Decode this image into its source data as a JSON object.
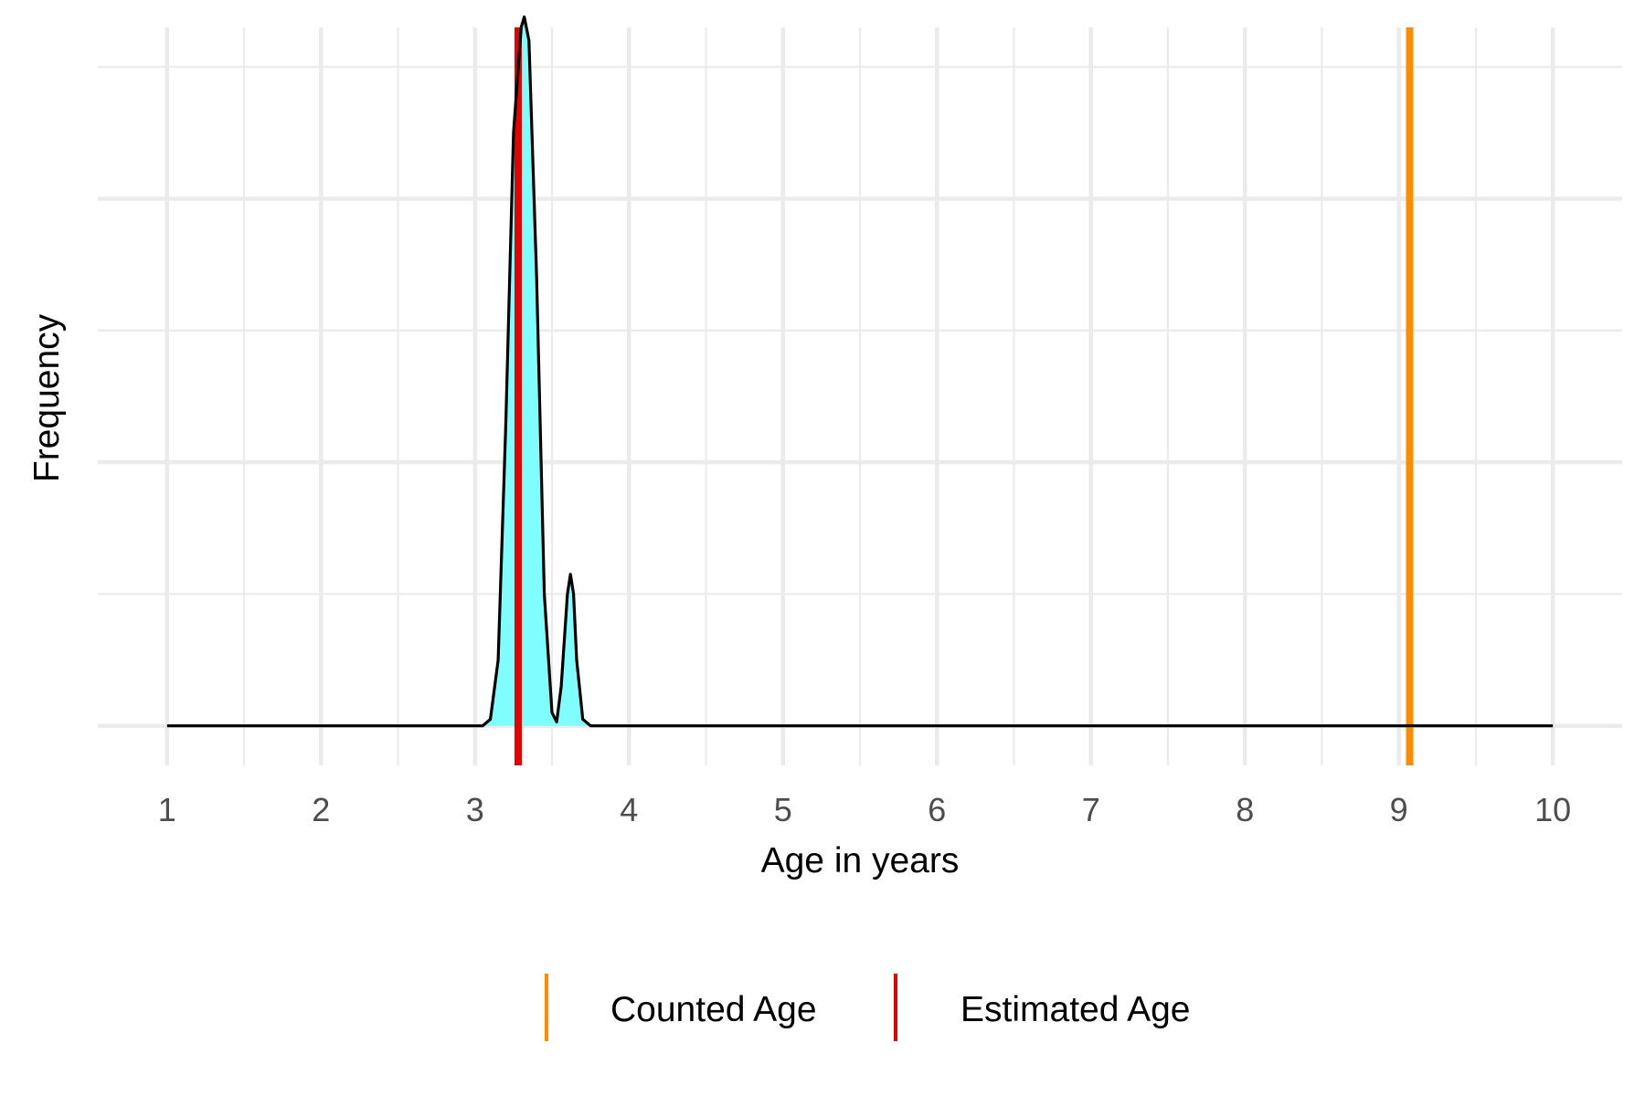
{
  "chart_data": {
    "type": "area",
    "xlabel": "Age in years",
    "ylabel": "Frequency",
    "xlim": [
      0.55,
      10.45
    ],
    "x_ticks": [
      1,
      2,
      3,
      4,
      5,
      6,
      7,
      8,
      9,
      10
    ],
    "x_tick_labels": [
      "1",
      "2",
      "3",
      "4",
      "5",
      "6",
      "7",
      "8",
      "9",
      "10"
    ],
    "ylim": [
      -0.3,
      5.3
    ],
    "y_major_gridlines": [
      0,
      2,
      4
    ],
    "y_minor_gridlines": [
      1,
      3,
      5
    ],
    "grid": true,
    "y_tick_labels_shown": false,
    "density": {
      "fill_color": "#7ffdff",
      "line_color": "#000000",
      "x": [
        1.0,
        3.05,
        3.1,
        3.15,
        3.2,
        3.25,
        3.3,
        3.32,
        3.35,
        3.4,
        3.45,
        3.5,
        3.53,
        3.56,
        3.6,
        3.62,
        3.64,
        3.66,
        3.7,
        3.75,
        3.8,
        10.0
      ],
      "y": [
        0,
        0,
        0.05,
        0.5,
        2.3,
        4.5,
        5.3,
        5.38,
        5.2,
        3.4,
        1.0,
        0.1,
        0.03,
        0.3,
        1.0,
        1.15,
        1.0,
        0.5,
        0.05,
        0,
        0,
        0
      ]
    },
    "vlines": [
      {
        "label": "Counted Age",
        "x": 9.07,
        "color": "#ff8c00"
      },
      {
        "label": "Estimated Age",
        "x": 3.28,
        "color": "#e60000"
      }
    ],
    "legend": {
      "position": "bottom",
      "entries": [
        {
          "label": "Counted Age",
          "color": "#ff8c00"
        },
        {
          "label": "Estimated Age",
          "color": "#e60000"
        }
      ]
    }
  }
}
